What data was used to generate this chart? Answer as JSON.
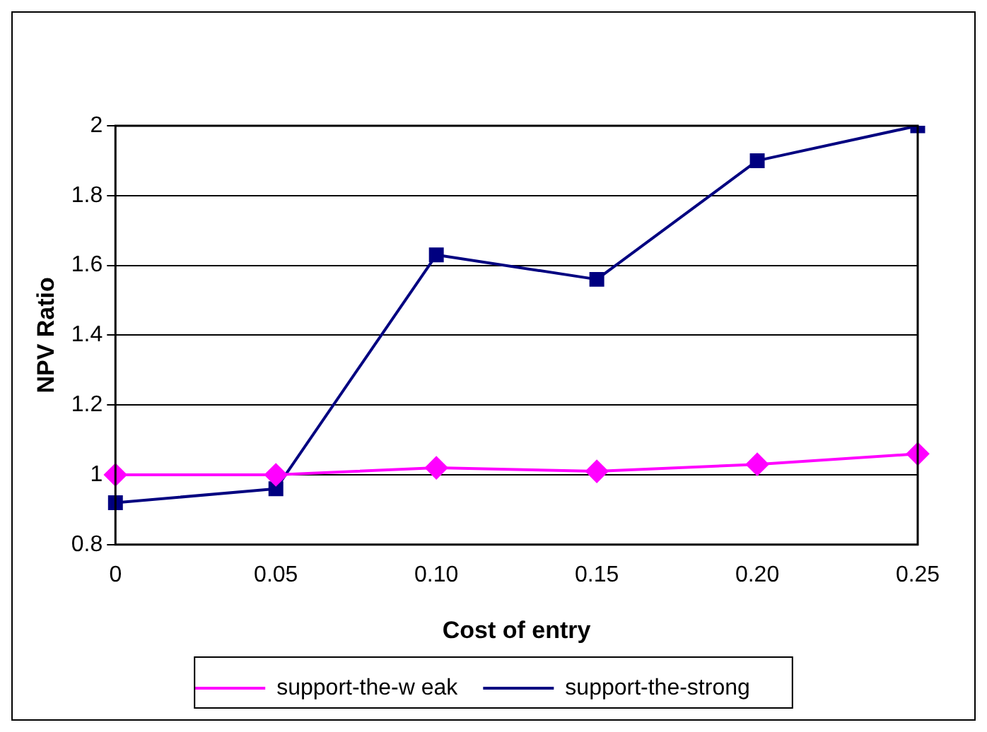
{
  "chart_data": {
    "type": "line",
    "xlabel": "Cost of entry",
    "ylabel": "NPV Ratio",
    "categories": [
      "0",
      "0.05",
      "0.10",
      "0.15",
      "0.20",
      "0.25"
    ],
    "series": [
      {
        "name": "support-the-w eak",
        "color": "#ff00ff",
        "marker": "diamond",
        "values": [
          1.0,
          1.0,
          1.02,
          1.01,
          1.03,
          1.06
        ]
      },
      {
        "name": "support-the-strong",
        "color": "#000080",
        "marker": "square",
        "values": [
          0.92,
          0.96,
          1.63,
          1.56,
          1.9,
          2.0
        ]
      }
    ],
    "ylim": [
      0.8,
      2
    ],
    "yticks": [
      0.8,
      1,
      1.2,
      1.4,
      1.6,
      1.8,
      2
    ],
    "grid": "y",
    "legend": "bottom",
    "line_style": "solid"
  }
}
